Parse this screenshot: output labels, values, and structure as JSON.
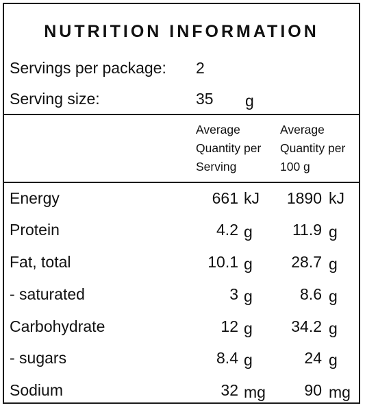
{
  "title": "NUTRITION INFORMATION",
  "servings": {
    "label": "Servings per package:",
    "value": "2"
  },
  "serving_size": {
    "label": "Serving size:",
    "value": "35",
    "unit": "g"
  },
  "columns": {
    "per_serving": [
      "Average",
      "Quantity per",
      "Serving"
    ],
    "per_100g": [
      "Average",
      "Quantity per",
      "100 g"
    ]
  },
  "rows": [
    {
      "name": "Energy",
      "serving": "661",
      "serving_unit": "kJ",
      "per100": "1890",
      "per100_unit": "kJ"
    },
    {
      "name": "Protein",
      "serving": "4.2",
      "serving_unit": "g",
      "per100": "11.9",
      "per100_unit": "g"
    },
    {
      "name": "Fat, total",
      "serving": "10.1",
      "serving_unit": "g",
      "per100": "28.7",
      "per100_unit": "g"
    },
    {
      "name": "- saturated",
      "serving": "3",
      "serving_unit": "g",
      "per100": "8.6",
      "per100_unit": "g"
    },
    {
      "name": "Carbohydrate",
      "serving": "12",
      "serving_unit": "g",
      "per100": "34.2",
      "per100_unit": "g"
    },
    {
      "name": "- sugars",
      "serving": "8.4",
      "serving_unit": "g",
      "per100": "24",
      "per100_unit": "g"
    },
    {
      "name": "Sodium",
      "serving": "32",
      "serving_unit": "mg",
      "per100": "90",
      "per100_unit": "mg"
    }
  ]
}
